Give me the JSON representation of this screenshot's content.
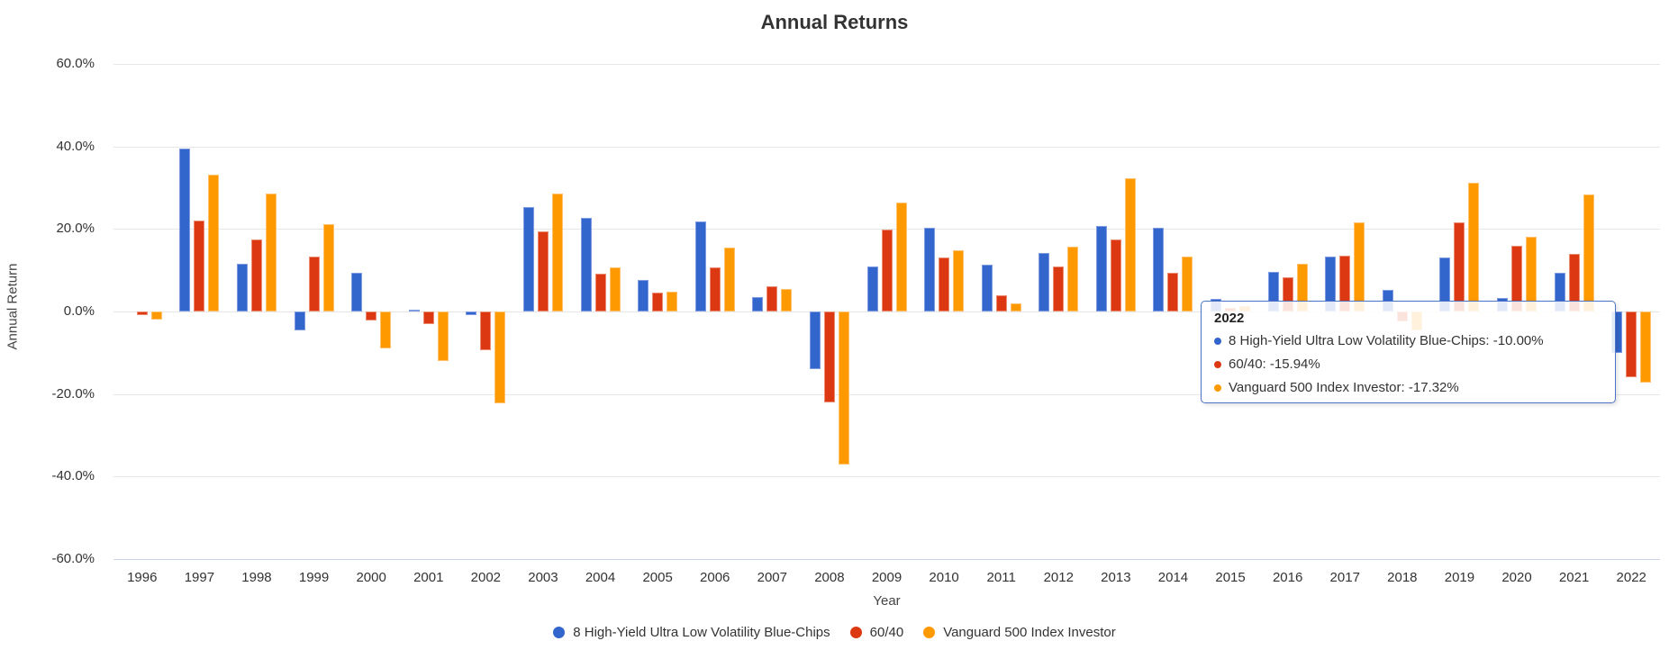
{
  "title": "Annual Returns",
  "chart_data": {
    "type": "bar",
    "title": "Annual Returns",
    "xlabel": "Year",
    "ylabel": "Annual Return",
    "ylim": [
      -60,
      60
    ],
    "grid": true,
    "legend_position": "bottom",
    "yticks": [
      {
        "value": 60,
        "label": "60.0%"
      },
      {
        "value": 40,
        "label": "40.0%"
      },
      {
        "value": 20,
        "label": "20.0%"
      },
      {
        "value": 0,
        "label": "0.0%"
      },
      {
        "value": -20,
        "label": "-20.0%"
      },
      {
        "value": -40,
        "label": "-40.0%"
      },
      {
        "value": -60,
        "label": "-60.0%"
      }
    ],
    "categories": [
      "1996",
      "1997",
      "1998",
      "1999",
      "2000",
      "2001",
      "2002",
      "2003",
      "2004",
      "2005",
      "2006",
      "2007",
      "2008",
      "2009",
      "2010",
      "2011",
      "2012",
      "2013",
      "2014",
      "2015",
      "2016",
      "2017",
      "2018",
      "2019",
      "2020",
      "2021",
      "2022"
    ],
    "series": [
      {
        "name": "8 High-Yield Ultra Low Volatility Blue-Chips",
        "color": "#3366cc",
        "border_color": "#7f9ce3",
        "values": [
          0.0,
          39.5,
          11.6,
          -4.6,
          9.4,
          0.5,
          -0.8,
          25.4,
          22.8,
          7.6,
          21.8,
          3.4,
          -13.9,
          11.0,
          20.2,
          11.3,
          14.2,
          20.8,
          20.4,
          3.0,
          9.5,
          13.3,
          5.3,
          13.1,
          3.3,
          9.4,
          -10.0
        ]
      },
      {
        "name": "60/40",
        "color": "#dc3912",
        "border_color": "#ec8c74",
        "values": [
          -0.9,
          22.0,
          17.5,
          13.3,
          -2.2,
          -3.0,
          -9.3,
          19.5,
          9.1,
          4.5,
          10.8,
          6.1,
          -22.0,
          19.8,
          13.0,
          3.9,
          10.9,
          17.5,
          9.4,
          0.9,
          8.2,
          13.6,
          -2.4,
          21.5,
          15.9,
          13.9,
          -15.94
        ]
      },
      {
        "name": "Vanguard 500 Index Investor",
        "color": "#ff9900",
        "border_color": "#ffc169",
        "values": [
          -1.9,
          33.2,
          28.6,
          21.1,
          -8.9,
          -12.0,
          -22.2,
          28.5,
          10.7,
          4.8,
          15.6,
          5.4,
          -37.0,
          26.5,
          14.9,
          1.9,
          15.8,
          32.2,
          13.4,
          1.3,
          11.5,
          21.7,
          -4.5,
          31.3,
          18.1,
          28.4,
          -17.32
        ]
      }
    ]
  },
  "tooltip": {
    "header": "2022",
    "rows": [
      {
        "label": "8 High-Yield Ultra Low Volatility Blue-Chips",
        "value": "-10.00%",
        "color": "#3366cc"
      },
      {
        "label": "60/40",
        "value": "-15.94%",
        "color": "#dc3912"
      },
      {
        "label": "Vanguard 500 Index Investor",
        "value": "-17.32%",
        "color": "#ff9900"
      }
    ]
  },
  "legend": {
    "items": [
      {
        "label": "8 High-Yield Ultra Low Volatility Blue-Chips",
        "color": "#3366cc"
      },
      {
        "label": "60/40",
        "color": "#dc3912"
      },
      {
        "label": "Vanguard 500 Index Investor",
        "color": "#ff9900"
      }
    ]
  }
}
